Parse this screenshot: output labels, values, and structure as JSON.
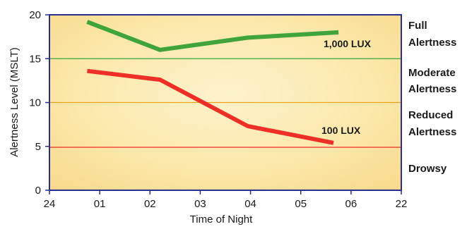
{
  "chart_data": {
    "type": "line",
    "xlabel": "Time of Night",
    "ylabel": "Alertness Level (MSLT)",
    "x_ticks": [
      "24",
      "01",
      "02",
      "03",
      "04",
      "05",
      "06",
      "22"
    ],
    "xlim": [
      0,
      7
    ],
    "ylim": [
      0,
      20
    ],
    "y_ticks": [
      0,
      5,
      10,
      15,
      20
    ],
    "grid": false,
    "series": [
      {
        "name": "1,000 LUX",
        "color": "#3fa43c",
        "x": [
          0.75,
          2.2,
          3.95,
          5.75
        ],
        "y": [
          19.2,
          16.0,
          17.4,
          18.0
        ]
      },
      {
        "name": "100 LUX",
        "color": "#ee2f27",
        "x": [
          0.75,
          2.2,
          3.95,
          5.65
        ],
        "y": [
          13.6,
          12.6,
          7.3,
          5.4
        ]
      }
    ],
    "thresholds": [
      {
        "y": 15,
        "color": "#3fa43c"
      },
      {
        "y": 10,
        "color": "#e8a421"
      },
      {
        "y": 4.9,
        "color": "#ee2f27"
      }
    ],
    "zones": [
      {
        "line1": "Full",
        "line2": "Alertness"
      },
      {
        "line1": "Moderate",
        "line2": "Alertness"
      },
      {
        "line1": "Reduced",
        "line2": "Alertness"
      },
      {
        "line1": "Drowsy",
        "line2": ""
      }
    ],
    "colors": {
      "frame": "#2a2f8c",
      "background": "#fbe7a8"
    }
  }
}
